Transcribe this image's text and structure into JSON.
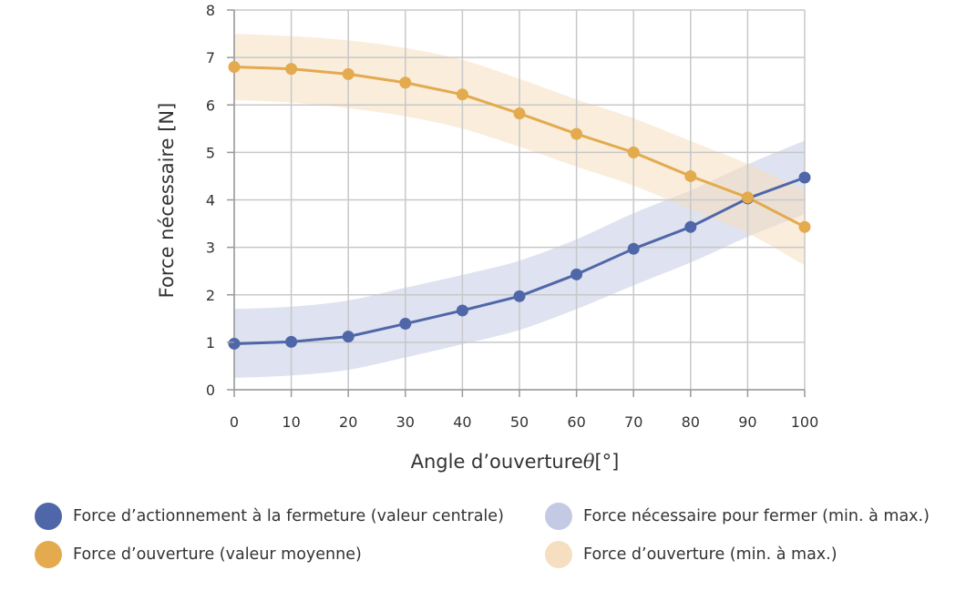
{
  "chart_data": {
    "type": "line",
    "xlabel": "Angle d’ouverture",
    "xlabel_symbol": "θ",
    "xlabel_unit": "[°]",
    "ylabel": "Force nécessaire [N]",
    "xlim": [
      0,
      100
    ],
    "ylim": [
      0,
      8
    ],
    "x_ticks": [
      0,
      10,
      20,
      30,
      40,
      50,
      60,
      70,
      80,
      90,
      100
    ],
    "y_ticks": [
      0,
      1,
      2,
      3,
      4,
      5,
      6,
      7,
      8
    ],
    "grid": true,
    "legend_position": "bottom",
    "x": [
      0,
      10,
      20,
      30,
      40,
      50,
      60,
      70,
      80,
      90,
      100
    ],
    "series": [
      {
        "name": "Force d’actionnement à la fermeture (valeur centrale)",
        "kind": "line",
        "color": "#4f67a8",
        "values": [
          0.97,
          1.01,
          1.12,
          1.39,
          1.67,
          1.97,
          2.43,
          2.97,
          3.43,
          4.03,
          4.47
        ]
      },
      {
        "name": "Force d’ouverture (valeur moyenne)",
        "kind": "line",
        "color": "#e3aa4e",
        "values": [
          6.8,
          6.76,
          6.65,
          6.47,
          6.22,
          5.82,
          5.39,
          5.0,
          4.5,
          4.05,
          3.43
        ]
      },
      {
        "name": "Force nécessaire pour fermer (min. à max.)",
        "kind": "band",
        "color": "#c4cae3",
        "lower": [
          0.25,
          0.3,
          0.42,
          0.68,
          0.96,
          1.26,
          1.7,
          2.2,
          2.68,
          3.22,
          3.7
        ],
        "upper": [
          1.7,
          1.75,
          1.88,
          2.15,
          2.42,
          2.72,
          3.17,
          3.72,
          4.2,
          4.75,
          5.25
        ]
      },
      {
        "name": "Force d’ouverture (min. à max.)",
        "kind": "band",
        "color": "#f5dfc0",
        "lower": [
          6.1,
          6.05,
          5.93,
          5.76,
          5.5,
          5.12,
          4.7,
          4.3,
          3.8,
          3.3,
          2.62
        ],
        "upper": [
          7.5,
          7.45,
          7.36,
          7.2,
          6.95,
          6.55,
          6.12,
          5.72,
          5.24,
          4.76,
          4.2
        ]
      }
    ]
  }
}
